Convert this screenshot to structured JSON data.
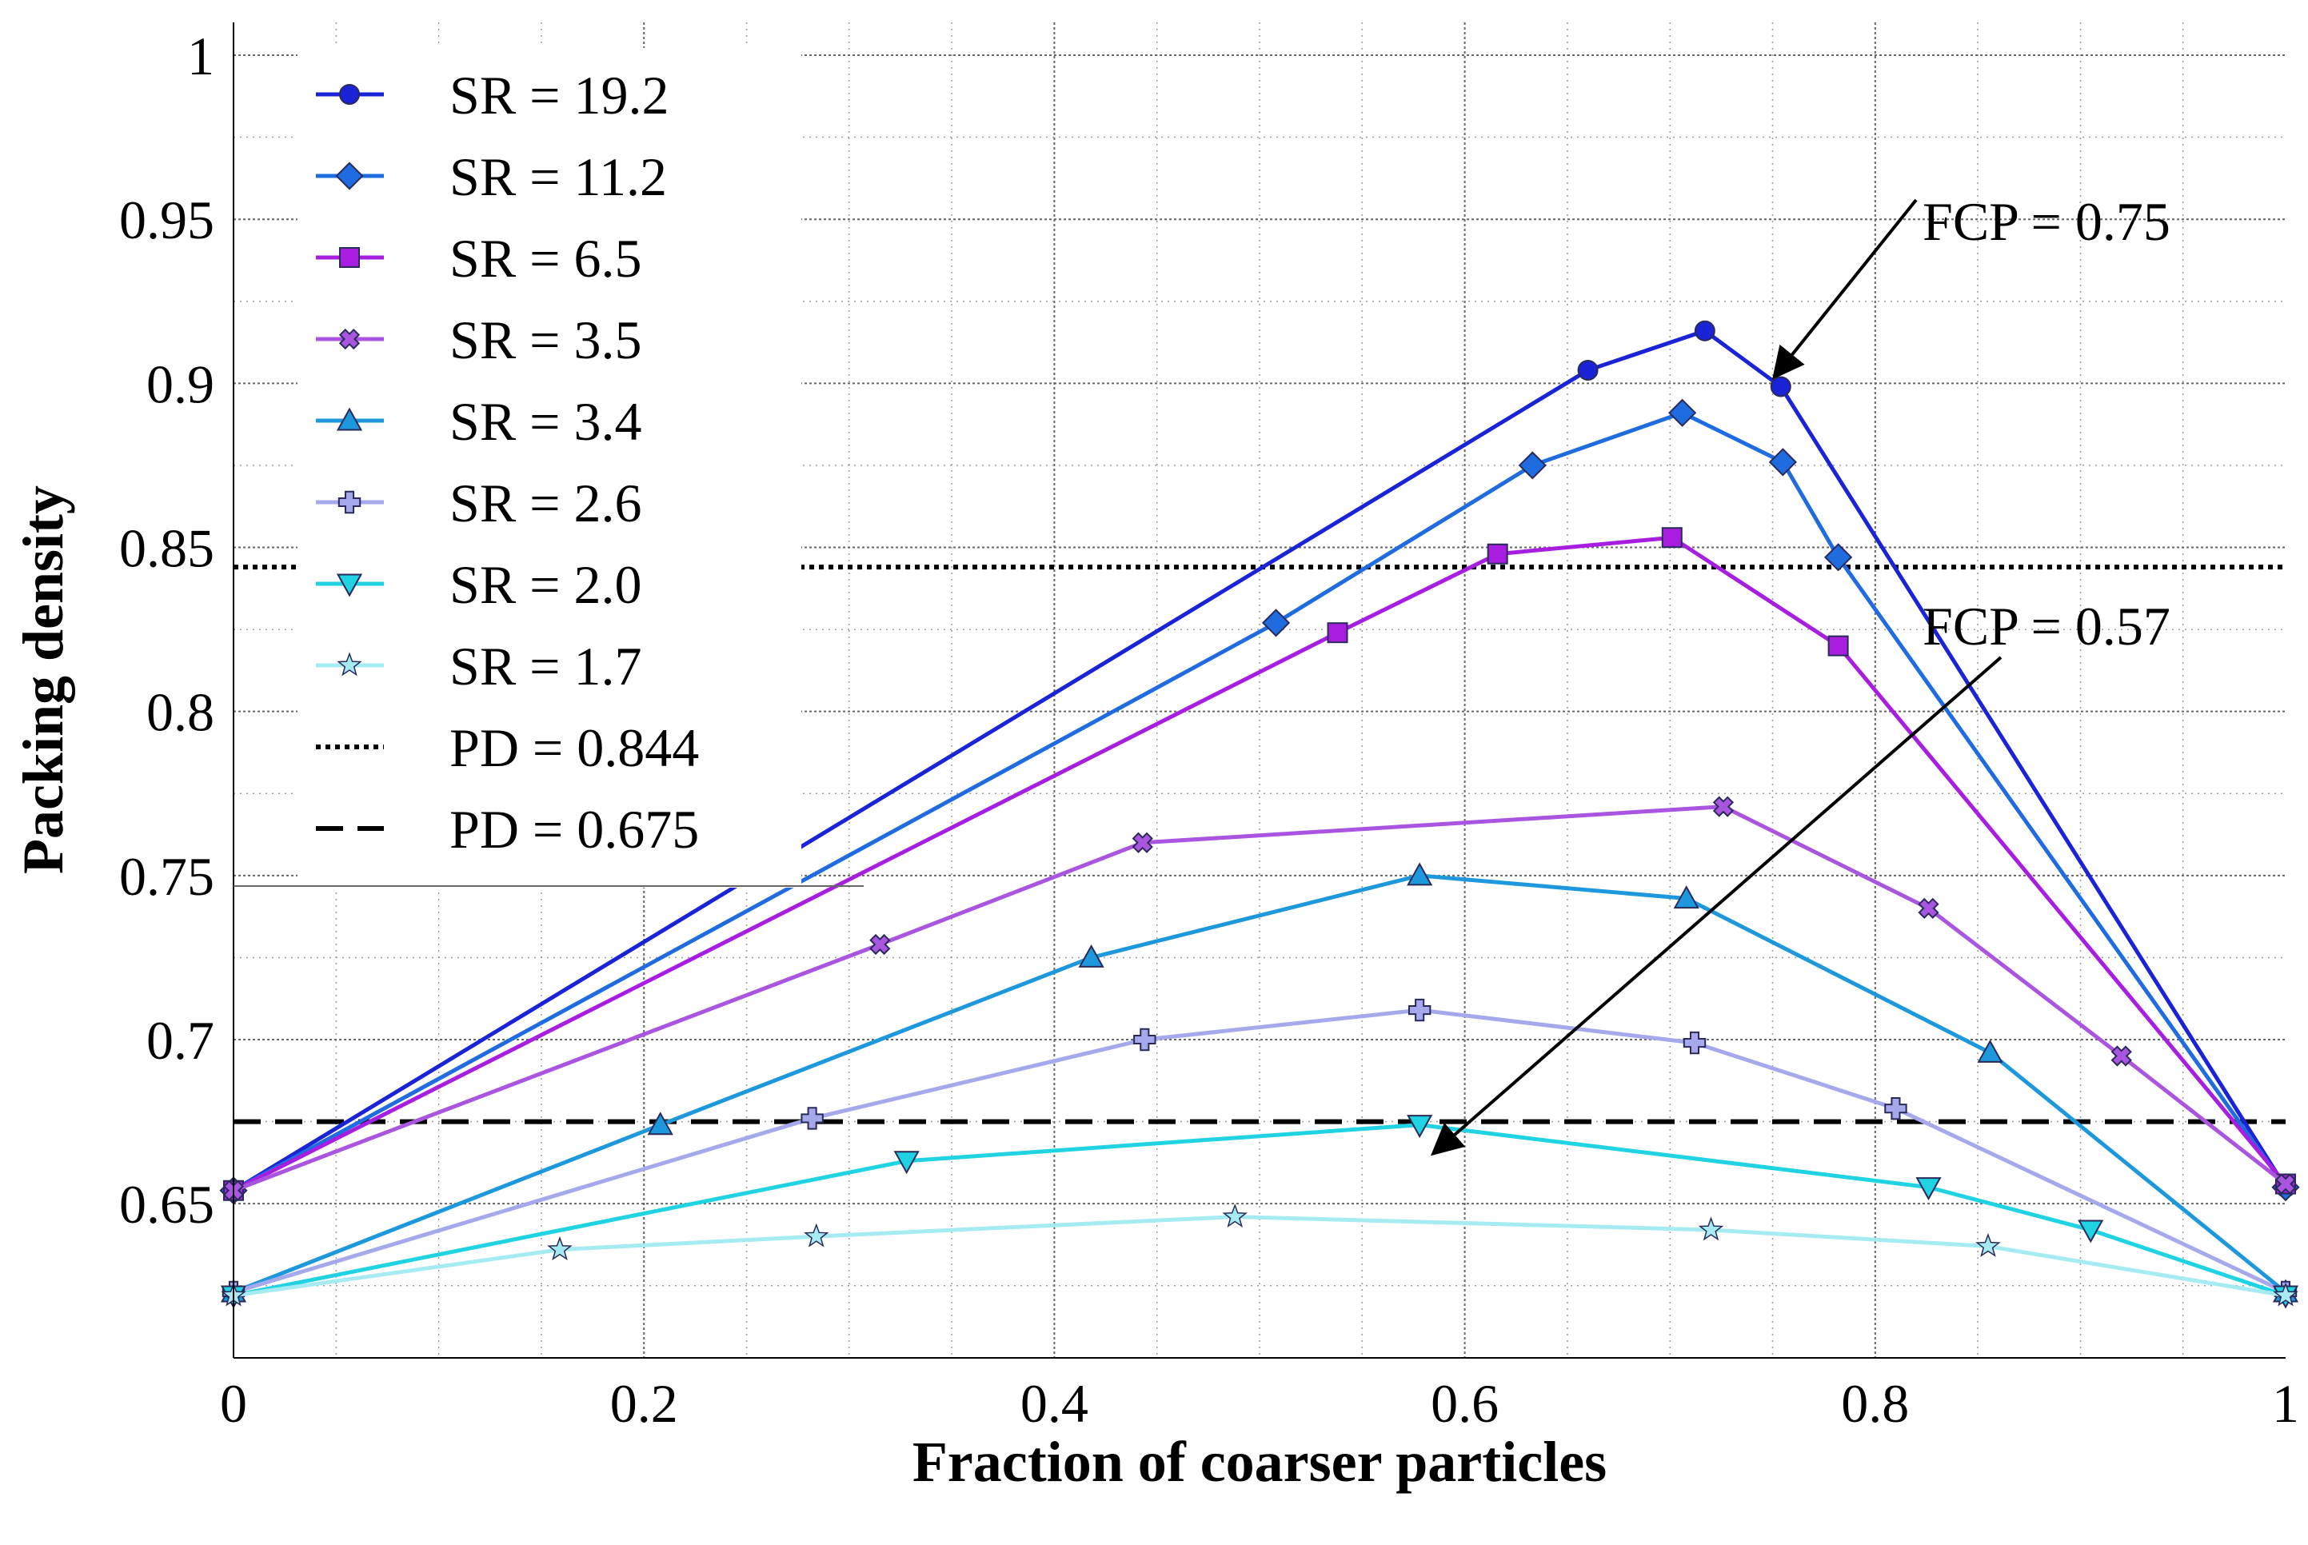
{
  "chart_data": {
    "type": "line",
    "title": "",
    "xlabel": "Fraction of coarser particles",
    "ylabel": "Packing density",
    "xlim": [
      0,
      1
    ],
    "ylim": [
      0.603,
      1.01
    ],
    "x_ticks": [
      0,
      0.2,
      0.4,
      0.6,
      0.8,
      1
    ],
    "x_tick_labels": [
      "0",
      "0.2",
      "0.4",
      "0.6",
      "0.8",
      "1"
    ],
    "y_ticks": [
      0.65,
      0.7,
      0.75,
      0.8,
      0.85,
      0.9,
      0.95,
      1
    ],
    "y_tick_labels": [
      "0.65",
      "0.7",
      "0.75",
      "0.8",
      "0.85",
      "0.9",
      "0.95",
      "1"
    ],
    "grid": true,
    "legend_position": "top-left",
    "series": [
      {
        "name": "SR = 19.2",
        "color": "#1a23d6",
        "marker": "circle",
        "x": [
          0,
          0.66,
          0.717,
          0.754,
          1
        ],
        "y": [
          0.654,
          0.904,
          0.916,
          0.899,
          0.655
        ]
      },
      {
        "name": "SR = 11.2",
        "color": "#1f6be0",
        "marker": "diamond",
        "x": [
          0,
          0.508,
          0.633,
          0.706,
          0.755,
          0.782,
          1
        ],
        "y": [
          0.654,
          0.827,
          0.875,
          0.891,
          0.876,
          0.847,
          0.655
        ]
      },
      {
        "name": "SR = 6.5",
        "color": "#a81ee0",
        "marker": "square",
        "x": [
          0,
          0.538,
          0.616,
          0.701,
          0.782,
          1
        ],
        "y": [
          0.654,
          0.824,
          0.848,
          0.853,
          0.82,
          0.656
        ]
      },
      {
        "name": "SR = 3.5",
        "color": "#a955e0",
        "marker": "x",
        "x": [
          0,
          0.315,
          0.443,
          0.726,
          0.826,
          0.92,
          1
        ],
        "y": [
          0.654,
          0.729,
          0.76,
          0.771,
          0.74,
          0.695,
          0.656
        ]
      },
      {
        "name": "SR = 3.4",
        "color": "#1e98dc",
        "marker": "triangle-up",
        "x": [
          0,
          0.208,
          0.418,
          0.578,
          0.708,
          0.856,
          1
        ],
        "y": [
          0.623,
          0.674,
          0.725,
          0.75,
          0.743,
          0.696,
          0.623
        ]
      },
      {
        "name": "SR = 2.6",
        "color": "#a6a8ec",
        "marker": "plus",
        "x": [
          0,
          0.282,
          0.444,
          0.578,
          0.712,
          0.81,
          1
        ],
        "y": [
          0.623,
          0.676,
          0.7,
          0.709,
          0.699,
          0.679,
          0.623
        ]
      },
      {
        "name": "SR = 2.0",
        "color": "#1fd3e2",
        "marker": "triangle-down",
        "x": [
          0,
          0.328,
          0.578,
          0.826,
          0.905,
          1
        ],
        "y": [
          0.622,
          0.663,
          0.674,
          0.655,
          0.642,
          0.622
        ]
      },
      {
        "name": "SR = 1.7",
        "color": "#a7ebf2",
        "marker": "star",
        "x": [
          0,
          0.159,
          0.284,
          0.488,
          0.72,
          0.855,
          1
        ],
        "y": [
          0.622,
          0.636,
          0.64,
          0.646,
          0.642,
          0.637,
          0.622
        ]
      }
    ],
    "reference_lines": [
      {
        "name": "PD = 0.844",
        "value": 0.844,
        "style": "dotted"
      },
      {
        "name": "PD = 0.675",
        "value": 0.675,
        "style": "dashed"
      }
    ],
    "annotations": [
      {
        "text": "FCP = 0.75",
        "x_at": 0.75,
        "y_at": 0.899
      },
      {
        "text": "FCP = 0.57",
        "x_at": 0.57,
        "y_at": 0.675
      }
    ]
  }
}
